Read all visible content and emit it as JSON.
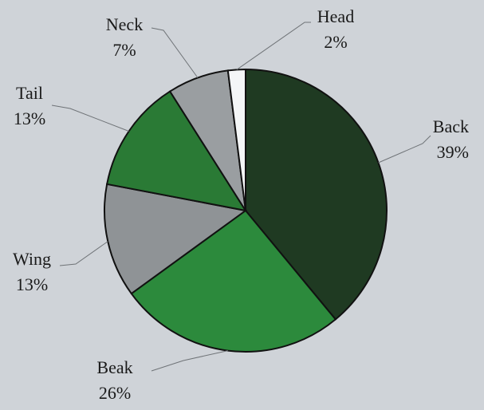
{
  "chart_data": {
    "type": "pie",
    "start": "12 o'clock, clockwise",
    "colors": {
      "background": "#cfd3d8",
      "outline": "#111111",
      "label_text": "#1a1a1a",
      "leader_line": "#6f7377"
    },
    "slices": [
      {
        "label": "Back",
        "value": 39,
        "value_label": "39%",
        "color": "#1f3a22"
      },
      {
        "label": "Beak",
        "value": 26,
        "value_label": "26%",
        "color": "#2c8a3c"
      },
      {
        "label": "Wing",
        "value": 13,
        "value_label": "13%",
        "color": "#8f9396"
      },
      {
        "label": "Tail",
        "value": 13,
        "value_label": "13%",
        "color": "#2a7a35"
      },
      {
        "label": "Neck",
        "value": 7,
        "value_label": "7%",
        "color": "#9a9ea1"
      },
      {
        "label": "Head",
        "value": 2,
        "value_label": "2%",
        "color": "#f4f6f7"
      }
    ]
  }
}
